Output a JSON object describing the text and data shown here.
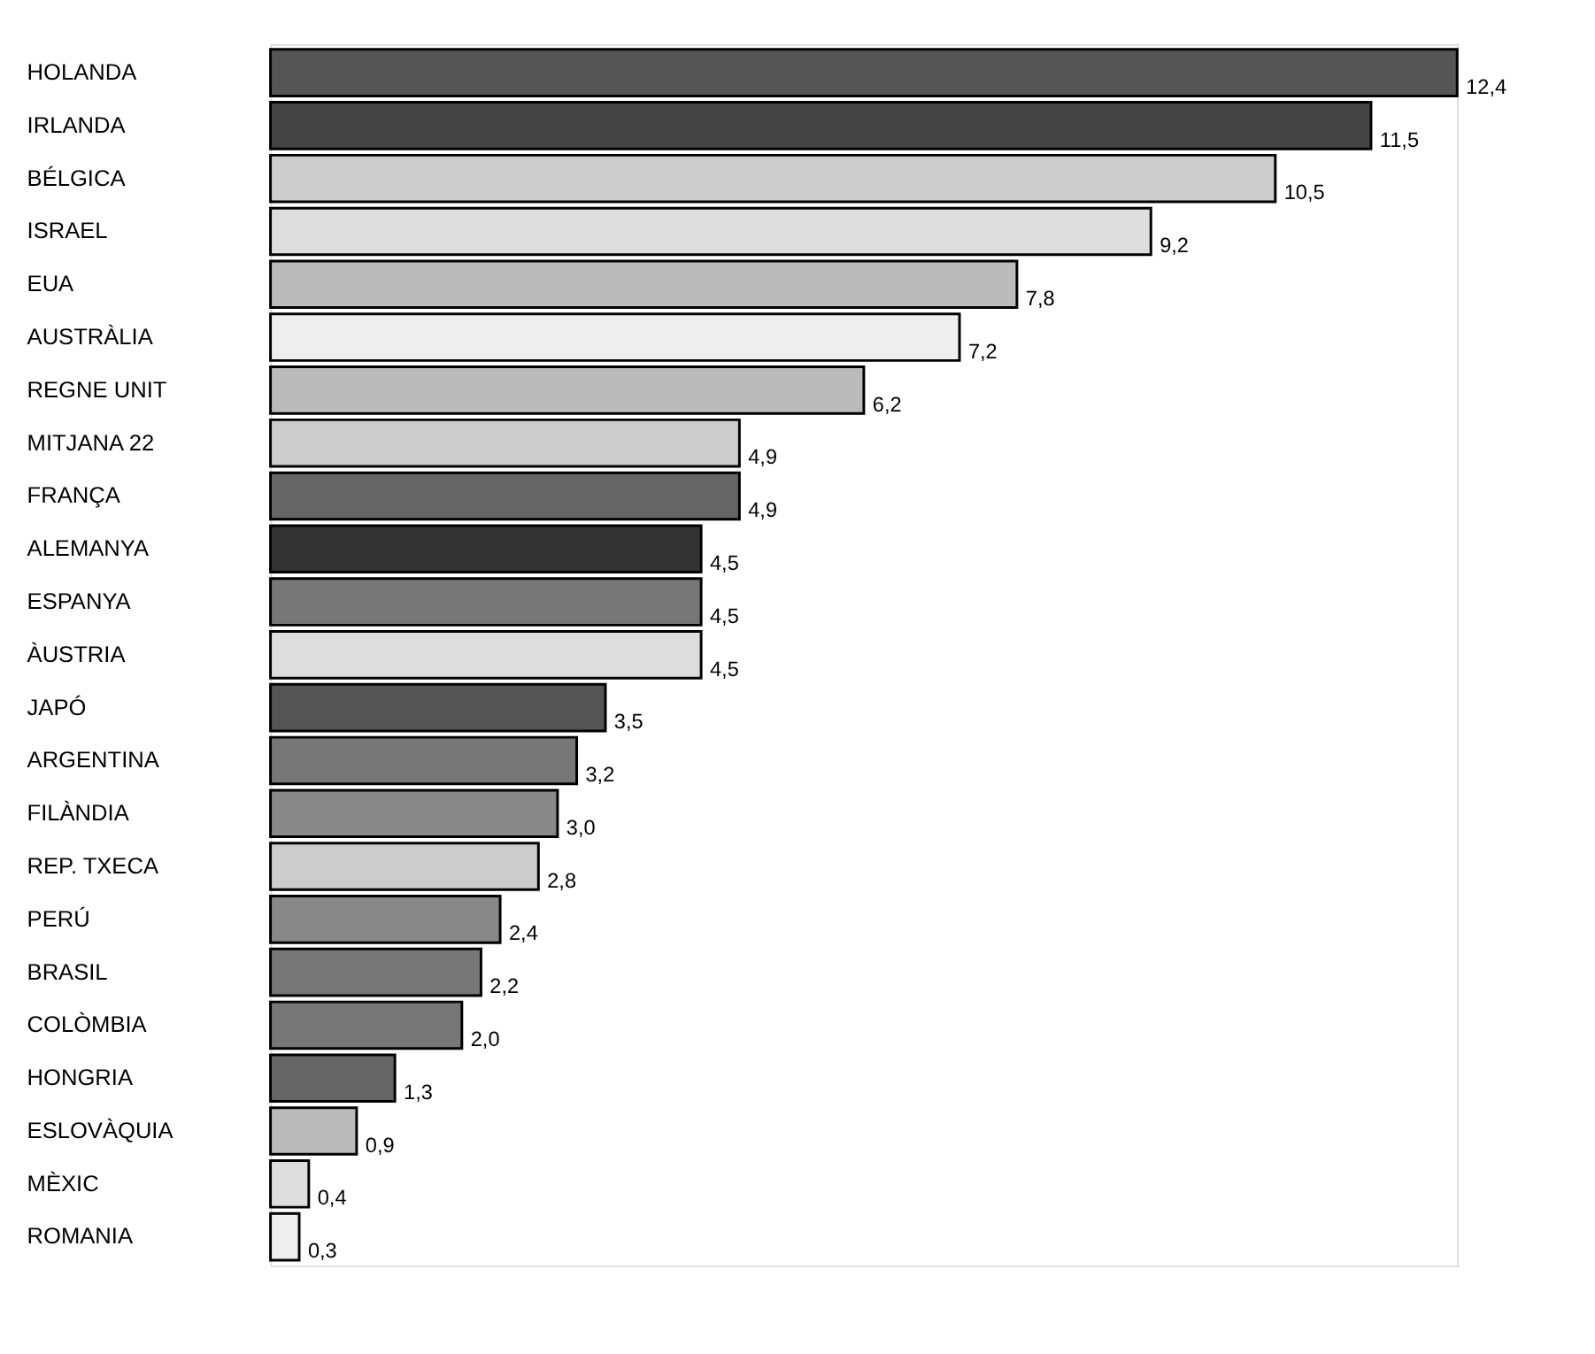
{
  "chart_data": {
    "type": "bar",
    "orientation": "horizontal",
    "data_labels": true,
    "categories": [
      "HOLANDA",
      "IRLANDA",
      "BÉLGICA",
      "ISRAEL",
      "EUA",
      "AUSTRÀLIA",
      "REGNE UNIT",
      "MITJANA 22",
      "FRANÇA",
      "ALEMANYA",
      "ESPANYA",
      "ÀUSTRIA",
      "JAPÓ",
      "ARGENTINA",
      "FILÀNDIA",
      "REP. TXECA",
      "PERÚ",
      "BRASIL",
      "COLÒMBIA",
      "HONGRIA",
      "ESLOVÀQUIA",
      "MÈXIC",
      "ROMANIA"
    ],
    "values": [
      12.4,
      11.5,
      10.5,
      9.2,
      7.8,
      7.2,
      6.2,
      4.9,
      4.9,
      4.5,
      4.5,
      4.5,
      3.5,
      3.2,
      3.0,
      2.8,
      2.4,
      2.2,
      2.0,
      1.3,
      0.9,
      0.4,
      0.3
    ],
    "value_labels": [
      "12,4",
      "11,5",
      "10,5",
      "9,2",
      "7,8",
      "7,2",
      "6,2",
      "4,9",
      "4,9",
      "4,5",
      "4,5",
      "4,5",
      "3,5",
      "3,2",
      "3,0",
      "2,8",
      "2,4",
      "2,2",
      "2,0",
      "1,3",
      "0,9",
      "0,4",
      "0,3"
    ],
    "colors": [
      "#555555",
      "#444444",
      "#cccccc",
      "#dddddd",
      "#bbbbbb",
      "#eeeeee",
      "#bbbbbb",
      "#cccccc",
      "#666666",
      "#333333",
      "#777777",
      "#dddddd",
      "#555555",
      "#777777",
      "#888888",
      "#cccccc",
      "#888888",
      "#777777",
      "#777777",
      "#666666",
      "#bbbbbb",
      "#dddddd",
      "#eeeeee"
    ]
  }
}
